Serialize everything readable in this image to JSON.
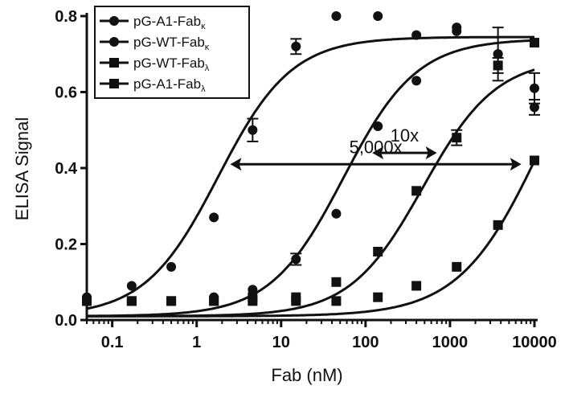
{
  "chart_data": {
    "type": "scatter",
    "xlabel": "Fab (nM)",
    "ylabel": "ELISA Signal",
    "xscale": "log",
    "xlim": [
      0.05,
      10000
    ],
    "ylim": [
      0,
      0.8
    ],
    "xticks": [
      0.1,
      1,
      10,
      100,
      1000,
      10000
    ],
    "xtick_labels": [
      "0.1",
      "1",
      "10",
      "100",
      "1000",
      "10000"
    ],
    "yticks": [
      0,
      0.2,
      0.4,
      0.6,
      0.8
    ],
    "ytick_labels": [
      "0.0",
      "0.2",
      "0.4",
      "0.6",
      "0.8"
    ],
    "legend_position": "top-left",
    "series": [
      {
        "name_main": "pG-A1-Fab",
        "name_sub": "κ",
        "marker": "circle",
        "x": [
          0.05,
          0.17,
          0.5,
          1.6,
          4.6,
          15,
          45,
          140,
          400,
          1200,
          3700,
          10000
        ],
        "y": [
          0.06,
          0.09,
          0.14,
          0.27,
          0.5,
          0.72,
          0.8,
          0.8,
          0.75,
          0.77,
          0.7,
          0.61
        ],
        "fit": {
          "bottom": 0.01,
          "top": 0.745,
          "ec50": 1.8,
          "hill": 1.0
        }
      },
      {
        "name_main": "pG-WT-Fab",
        "name_sub": "κ",
        "marker": "circle",
        "x": [
          0.05,
          0.17,
          0.5,
          1.6,
          4.6,
          15,
          45,
          140,
          400,
          1200,
          3700,
          10000
        ],
        "y": [
          0.05,
          0.05,
          0.05,
          0.06,
          0.08,
          0.16,
          0.28,
          0.51,
          0.63,
          0.76,
          0.7,
          0.56
        ],
        "fit": {
          "bottom": 0.01,
          "top": 0.74,
          "ec50": 55,
          "hill": 1.0
        }
      },
      {
        "name_main": "pG-WT-Fab",
        "name_sub": "λ",
        "marker": "square",
        "x": [
          0.05,
          0.17,
          0.5,
          1.6,
          4.6,
          15,
          45,
          140,
          400,
          1200,
          3700,
          10000
        ],
        "y": [
          0.05,
          0.05,
          0.05,
          0.05,
          0.06,
          0.06,
          0.1,
          0.18,
          0.34,
          0.48,
          0.67,
          0.73
        ],
        "fit": {
          "bottom": 0.01,
          "top": 0.69,
          "ec50": 480,
          "hill": 1.0
        }
      },
      {
        "name_main": "pG-A1-Fab",
        "name_sub": "λ",
        "marker": "square",
        "x": [
          0.05,
          0.17,
          0.5,
          1.6,
          4.6,
          15,
          45,
          140,
          400,
          1200,
          3700,
          10000
        ],
        "y": [
          0.05,
          0.05,
          0.05,
          0.05,
          0.05,
          0.05,
          0.05,
          0.06,
          0.09,
          0.14,
          0.25,
          0.42
        ],
        "fit": {
          "bottom": 0.01,
          "top": 0.9,
          "ec50": 12000,
          "hill": 0.9
        }
      }
    ],
    "annotations": [
      {
        "text": "5,000x",
        "from_x": 2.5,
        "to_x": 7000,
        "y": 0.41
      },
      {
        "text": "10x",
        "from_x": 120,
        "to_x": 700,
        "y": 0.44
      }
    ],
    "error_bars": [
      {
        "x": 4.6,
        "y": 0.5,
        "err": 0.03
      },
      {
        "x": 15,
        "y": 0.72,
        "err": 0.02
      },
      {
        "x": 15,
        "y": 0.16,
        "err": 0.015
      },
      {
        "x": 1200,
        "y": 0.48,
        "err": 0.02
      },
      {
        "x": 3700,
        "y": 0.7,
        "err": 0.07
      },
      {
        "x": 3700,
        "y": 0.67,
        "err": 0.02
      },
      {
        "x": 10000,
        "y": 0.61,
        "err": 0.04
      },
      {
        "x": 10000,
        "y": 0.56,
        "err": 0.02
      }
    ]
  }
}
